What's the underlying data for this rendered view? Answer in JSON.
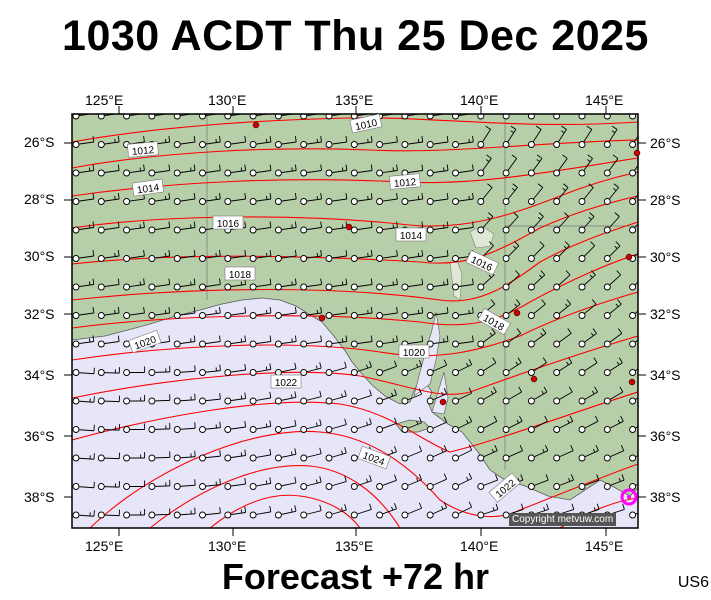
{
  "title": "1030 ACDT Thu 25 Dec 2025",
  "footer": "Forecast +72 hr",
  "region_code": "US6",
  "copyright": "Copyright metvuw.com",
  "lon_labels": [
    "125°E",
    "130°E",
    "135°E",
    "140°E",
    "145°E"
  ],
  "lat_labels": [
    "26°S",
    "28°S",
    "30°S",
    "32°S",
    "34°S",
    "36°S",
    "38°S"
  ],
  "isobar_labels": [
    "1010",
    "1012",
    "1012",
    "1014",
    "1014",
    "1016",
    "1016",
    "1018",
    "1018",
    "1020",
    "1020",
    "1022",
    "1024",
    "1022"
  ],
  "colors": {
    "land": "#b7cfa9",
    "sea": "#e6e6f8",
    "isobar": "#ff0000",
    "city": "#cc0000",
    "marker": "#ff00ff"
  }
}
